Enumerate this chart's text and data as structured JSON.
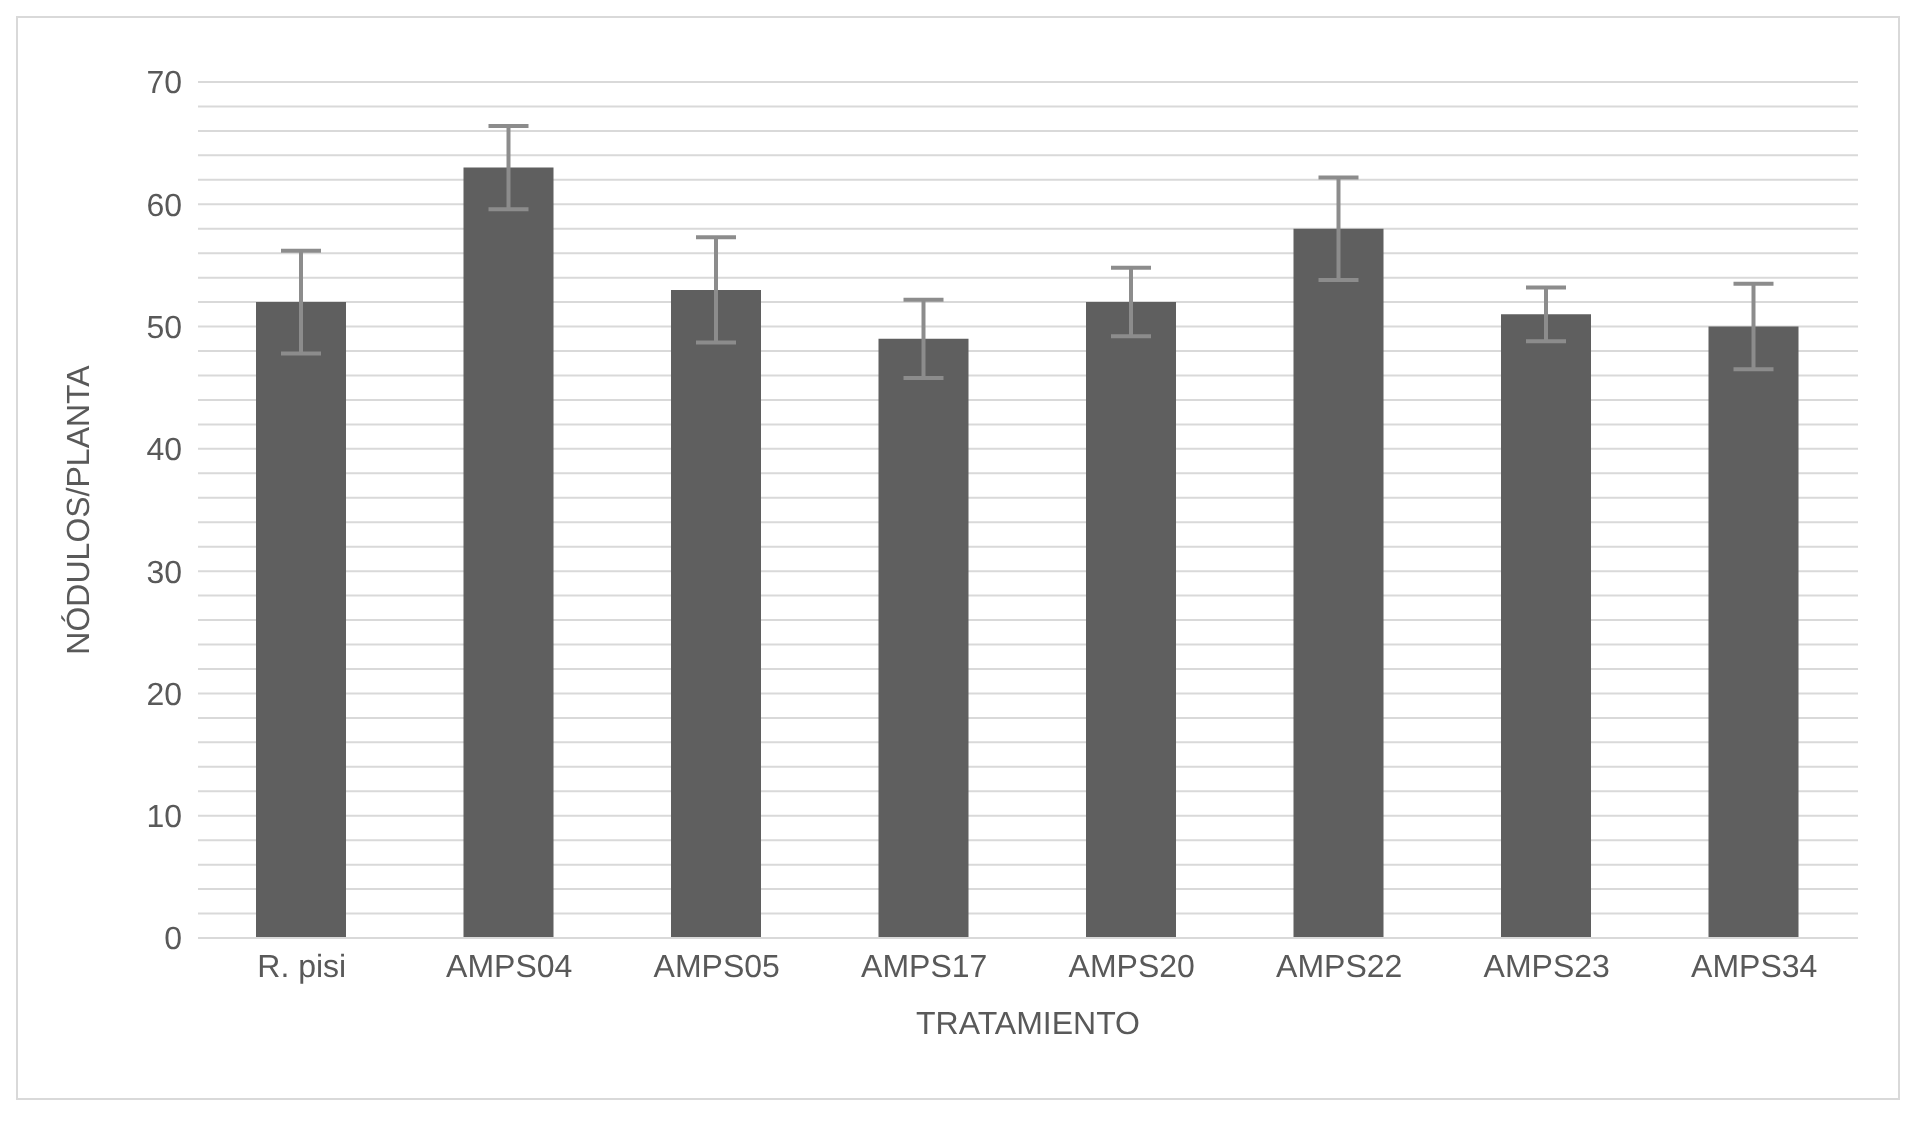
{
  "chart_data": {
    "type": "bar",
    "xlabel": "TRATAMIENTO",
    "ylabel": "NÓDULOS/PLANTA",
    "categories": [
      "R. pisi",
      "AMPS04",
      "AMPS05",
      "AMPS17",
      "AMPS20",
      "AMPS22",
      "AMPS23",
      "AMPS34"
    ],
    "series": [
      {
        "color": "#5f5f5f",
        "values": [
          52,
          63,
          53,
          49,
          52,
          58,
          51,
          50
        ],
        "errors": [
          4.2,
          3.4,
          4.3,
          3.2,
          2.8,
          4.2,
          2.2,
          3.5
        ]
      }
    ],
    "ylim": [
      0,
      70
    ],
    "yticks": [
      0,
      {
        "value": 2,
        "label": null
      },
      {
        "value": 4,
        "label": null
      },
      {
        "value": 6,
        "label": null
      },
      {
        "value": 8,
        "label": null
      },
      10,
      {
        "value": 12,
        "label": null
      },
      {
        "value": 14,
        "label": null
      },
      {
        "value": 16,
        "label": null
      },
      {
        "value": 18,
        "label": null
      },
      20,
      {
        "value": 22,
        "label": null
      },
      {
        "value": 24,
        "label": null
      },
      {
        "value": 26,
        "label": null
      },
      {
        "value": 28,
        "label": null
      },
      30,
      {
        "value": 32,
        "label": null
      },
      {
        "value": 34,
        "label": null
      },
      {
        "value": 36,
        "label": null
      },
      {
        "value": 38,
        "label": null
      },
      40,
      {
        "value": 42,
        "label": null
      },
      {
        "value": 44,
        "label": null
      },
      {
        "value": 46,
        "label": null
      },
      {
        "value": 48,
        "label": null
      },
      50,
      {
        "value": 52,
        "label": null
      },
      {
        "value": 54,
        "label": null
      },
      {
        "value": 56,
        "label": null
      },
      {
        "value": 58,
        "label": null
      },
      60,
      {
        "value": 62,
        "label": null
      },
      {
        "value": 64,
        "label": null
      },
      {
        "value": 66,
        "label": null
      },
      {
        "value": 68,
        "label": null
      },
      70
    ],
    "grid": "y",
    "legend": false
  }
}
